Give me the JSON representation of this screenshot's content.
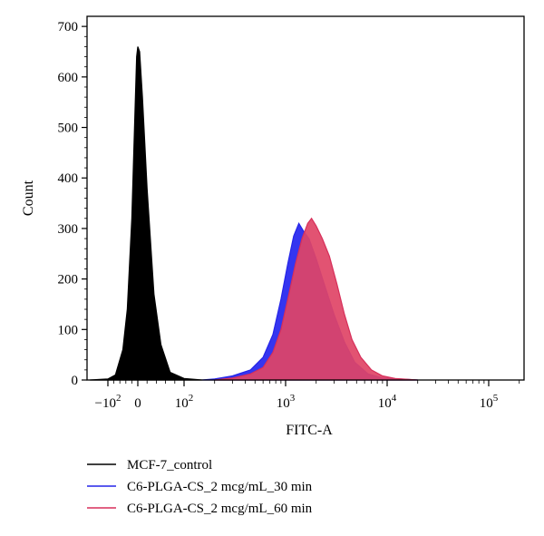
{
  "chart_data": {
    "type": "area",
    "xlabel": "FITC-A",
    "ylabel": "Count",
    "x_scale": "biexponential",
    "ylim": [
      0,
      720
    ],
    "grid": false,
    "legend_placement": "bottom-left",
    "x_ticks": [
      {
        "value": -100,
        "label": "−10",
        "sup": "2"
      },
      {
        "value": 0,
        "label": "0",
        "sup": ""
      },
      {
        "value": 100,
        "label": "10",
        "sup": "2"
      },
      {
        "value": 1000,
        "label": "10",
        "sup": "3"
      },
      {
        "value": 10000,
        "label": "10",
        "sup": "4"
      },
      {
        "value": 100000,
        "label": "10",
        "sup": "5"
      }
    ],
    "y_ticks": [
      0,
      100,
      200,
      300,
      400,
      500,
      600,
      700
    ],
    "series": [
      {
        "name": "MCF-7_control",
        "color": "#000000",
        "fill": "#000000",
        "points": [
          [
            -160,
            0
          ],
          [
            -100,
            2
          ],
          [
            -75,
            10
          ],
          [
            -50,
            60
          ],
          [
            -35,
            140
          ],
          [
            -20,
            320
          ],
          [
            -10,
            520
          ],
          [
            -4,
            640
          ],
          [
            0,
            660
          ],
          [
            4,
            650
          ],
          [
            10,
            560
          ],
          [
            20,
            380
          ],
          [
            35,
            170
          ],
          [
            50,
            70
          ],
          [
            70,
            15
          ],
          [
            100,
            3
          ],
          [
            150,
            0
          ]
        ]
      },
      {
        "name": "C6-PLGA-CS_2 mcg/mL_30 min",
        "color": "#2525e8",
        "fill": "#3535f0",
        "points": [
          [
            150,
            0
          ],
          [
            200,
            2
          ],
          [
            300,
            8
          ],
          [
            450,
            20
          ],
          [
            600,
            45
          ],
          [
            750,
            90
          ],
          [
            900,
            160
          ],
          [
            1050,
            230
          ],
          [
            1200,
            285
          ],
          [
            1350,
            310
          ],
          [
            1500,
            295
          ],
          [
            1700,
            280
          ],
          [
            2000,
            240
          ],
          [
            2400,
            190
          ],
          [
            3000,
            130
          ],
          [
            3800,
            75
          ],
          [
            4800,
            35
          ],
          [
            6500,
            12
          ],
          [
            9000,
            4
          ],
          [
            20000,
            0
          ]
        ]
      },
      {
        "name": "C6-PLGA-CS_2 mcg/mL_60 min",
        "color": "#d72f5a",
        "fill": "#e04466",
        "fill_opacity": 0.92,
        "points": [
          [
            200,
            0
          ],
          [
            300,
            4
          ],
          [
            450,
            12
          ],
          [
            600,
            25
          ],
          [
            750,
            55
          ],
          [
            900,
            100
          ],
          [
            1050,
            160
          ],
          [
            1250,
            230
          ],
          [
            1450,
            280
          ],
          [
            1650,
            310
          ],
          [
            1800,
            320
          ],
          [
            2000,
            305
          ],
          [
            2300,
            280
          ],
          [
            2700,
            245
          ],
          [
            3200,
            190
          ],
          [
            3800,
            130
          ],
          [
            4500,
            80
          ],
          [
            5500,
            45
          ],
          [
            7000,
            20
          ],
          [
            9000,
            8
          ],
          [
            12000,
            3
          ],
          [
            20000,
            0
          ]
        ]
      }
    ]
  }
}
